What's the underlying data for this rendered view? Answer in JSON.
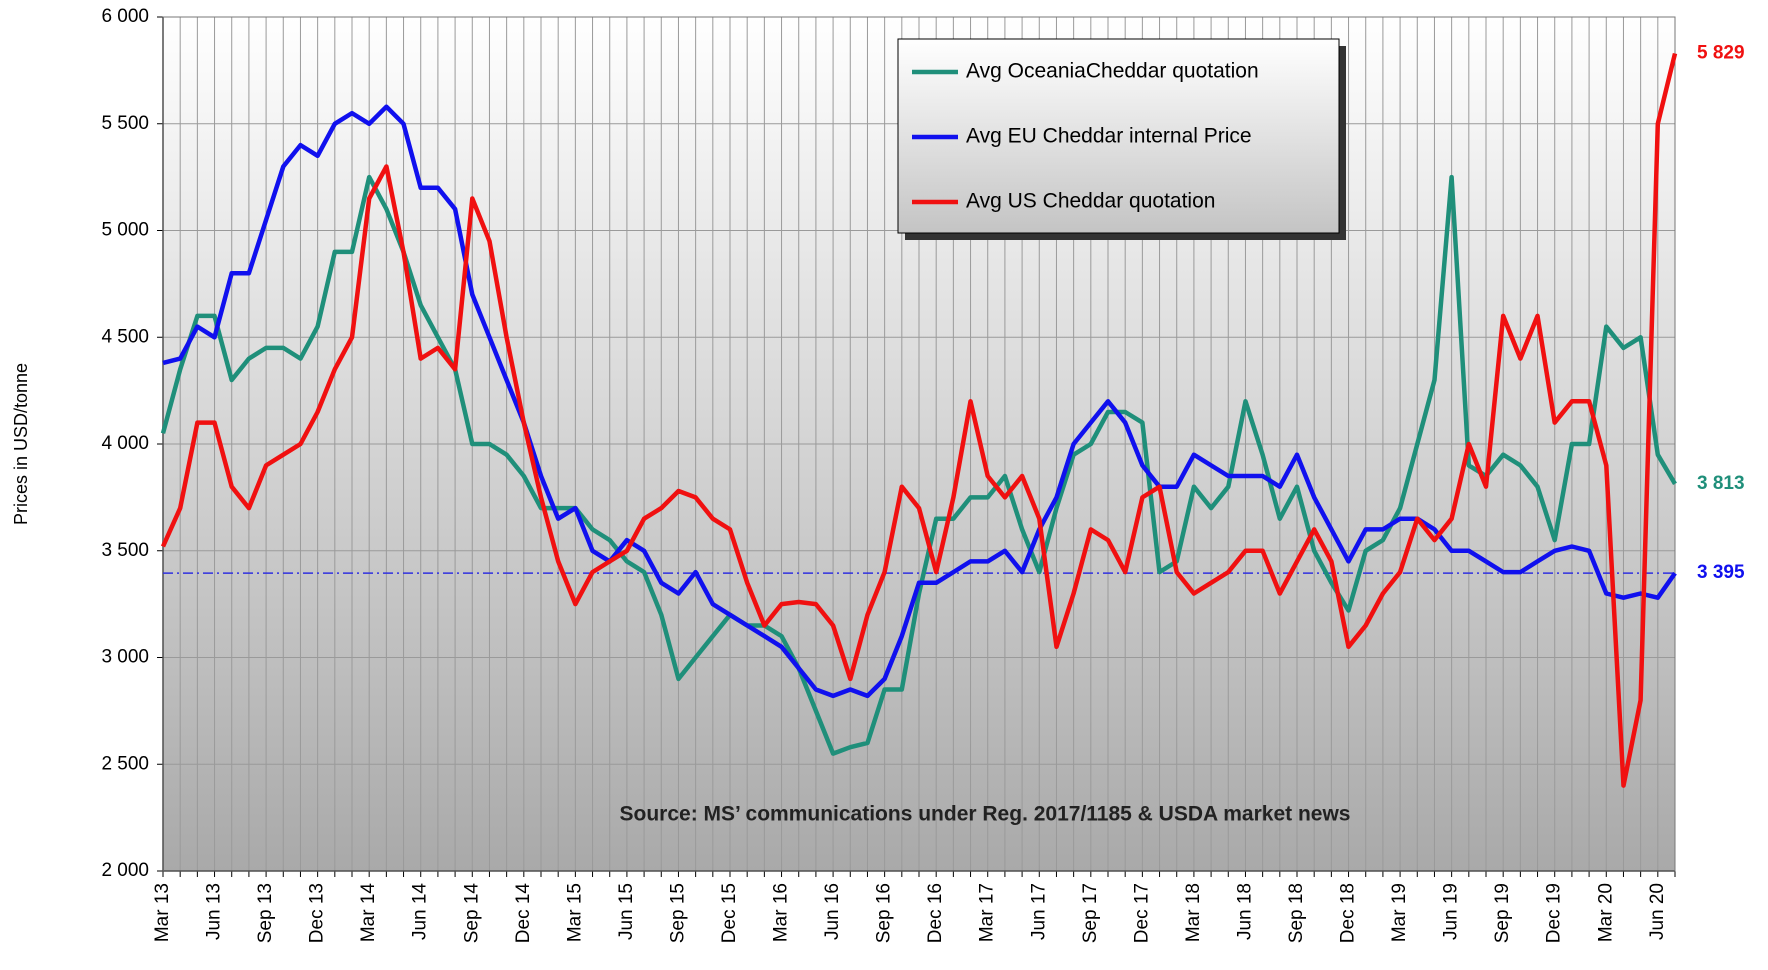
{
  "chart_data": {
    "type": "line",
    "ylabel": "Prices in USD/tonne",
    "annotation": "Source: MS’ communications under Reg. 2017/1185  & USDA market news",
    "categories": [
      "Mar 13",
      null,
      null,
      "Jun 13",
      null,
      null,
      "Sep 13",
      null,
      null,
      "Dec 13",
      null,
      null,
      "Mar 14",
      null,
      null,
      "Jun 14",
      null,
      null,
      "Sep 14",
      null,
      null,
      "Dec 14",
      null,
      null,
      "Mar 15",
      null,
      null,
      "Jun 15",
      null,
      null,
      "Sep 15",
      null,
      null,
      "Dec 15",
      null,
      null,
      "Mar 16",
      null,
      null,
      "Jun 16",
      null,
      null,
      "Sep 16",
      null,
      null,
      "Dec 16",
      null,
      null,
      "Mar 17",
      null,
      null,
      "Jun 17",
      null,
      null,
      "Sep 17",
      null,
      null,
      "Dec 17",
      null,
      null,
      "Mar 18",
      null,
      null,
      "Jun 18",
      null,
      null,
      "Sep 18",
      null,
      null,
      "Dec 18",
      null,
      null,
      "Mar 19",
      null,
      null,
      "Jun 19",
      null,
      null,
      "Sep 19",
      null,
      null,
      "Dec 19",
      null,
      null,
      "Mar 20",
      null,
      null,
      "Jun 20",
      null
    ],
    "series": [
      {
        "name": "Avg OceaniaCheddar quotation",
        "color": "#1f8f7a",
        "end_label": "3 813",
        "values": [
          4050,
          4350,
          4600,
          4600,
          4300,
          4400,
          4450,
          4450,
          4400,
          4550,
          4900,
          4900,
          5250,
          5100,
          4900,
          4650,
          4500,
          4350,
          4000,
          4000,
          3950,
          3850,
          3700,
          3700,
          3700,
          3600,
          3550,
          3450,
          3400,
          3200,
          2900,
          3000,
          3100,
          3200,
          3150,
          3150,
          3100,
          2950,
          2750,
          2550,
          2580,
          2600,
          2850,
          2850,
          3300,
          3650,
          3650,
          3750,
          3750,
          3850,
          3600,
          3400,
          3700,
          3950,
          4000,
          4150,
          4150,
          4100,
          3400,
          3450,
          3800,
          3700,
          3800,
          4200,
          3950,
          3650,
          3800,
          3500,
          3350,
          3220,
          3500,
          3550,
          3700,
          4000,
          4300,
          5250,
          3900,
          3850,
          3950,
          3900,
          3800,
          3550,
          4000,
          4000,
          4550,
          4450,
          4500,
          3950,
          3813
        ]
      },
      {
        "name": "Avg EU Cheddar internal Price",
        "color": "#1010ee",
        "end_label": "3 395",
        "values": [
          4380,
          4400,
          4550,
          4500,
          4800,
          4800,
          5050,
          5300,
          5400,
          5350,
          5500,
          5550,
          5500,
          5580,
          5500,
          5200,
          5200,
          5100,
          4700,
          4500,
          4300,
          4100,
          3850,
          3650,
          3700,
          3500,
          3450,
          3550,
          3500,
          3350,
          3300,
          3400,
          3250,
          3200,
          3150,
          3100,
          3050,
          2950,
          2850,
          2820,
          2850,
          2820,
          2900,
          3100,
          3350,
          3350,
          3400,
          3450,
          3450,
          3500,
          3400,
          3600,
          3750,
          4000,
          4100,
          4200,
          4100,
          3900,
          3800,
          3800,
          3950,
          3900,
          3850,
          3850,
          3850,
          3800,
          3950,
          3750,
          3600,
          3450,
          3600,
          3600,
          3650,
          3650,
          3600,
          3500,
          3500,
          3450,
          3400,
          3400,
          3450,
          3500,
          3520,
          3500,
          3300,
          3280,
          3300,
          3280,
          3395
        ]
      },
      {
        "name": "Avg US Cheddar quotation",
        "color": "#f01010",
        "end_label": "5 829",
        "values": [
          3520,
          3700,
          4100,
          4100,
          3800,
          3700,
          3900,
          3950,
          4000,
          4150,
          4350,
          4500,
          5150,
          5300,
          4900,
          4400,
          4450,
          4350,
          5150,
          4950,
          4500,
          4100,
          3750,
          3450,
          3250,
          3400,
          3450,
          3500,
          3650,
          3700,
          3780,
          3750,
          3650,
          3600,
          3350,
          3150,
          3250,
          3260,
          3250,
          3150,
          2900,
          3200,
          3400,
          3800,
          3700,
          3400,
          3750,
          4200,
          3850,
          3750,
          3850,
          3650,
          3050,
          3300,
          3600,
          3550,
          3400,
          3750,
          3800,
          3400,
          3300,
          3350,
          3400,
          3500,
          3500,
          3300,
          3450,
          3600,
          3450,
          3050,
          3150,
          3300,
          3400,
          3650,
          3550,
          3650,
          4000,
          3800,
          4600,
          4400,
          4600,
          4100,
          4200,
          4200,
          3900,
          2400,
          2800,
          5500,
          5829
        ]
      }
    ],
    "reference_line": {
      "value": 3395,
      "color": "#3030e0"
    },
    "ylim": [
      2000,
      6000
    ],
    "yticks": [
      {
        "value": 2000,
        "label": "2 000"
      },
      {
        "value": 2500,
        "label": "2 500"
      },
      {
        "value": 3000,
        "label": "3 000"
      },
      {
        "value": 3500,
        "label": "3 500"
      },
      {
        "value": 4000,
        "label": "4 000"
      },
      {
        "value": 4500,
        "label": "4 500"
      },
      {
        "value": 5000,
        "label": "5 000"
      },
      {
        "value": 5500,
        "label": "5 500"
      },
      {
        "value": 6000,
        "label": "6 000"
      }
    ],
    "grid": true,
    "legend": "top"
  }
}
